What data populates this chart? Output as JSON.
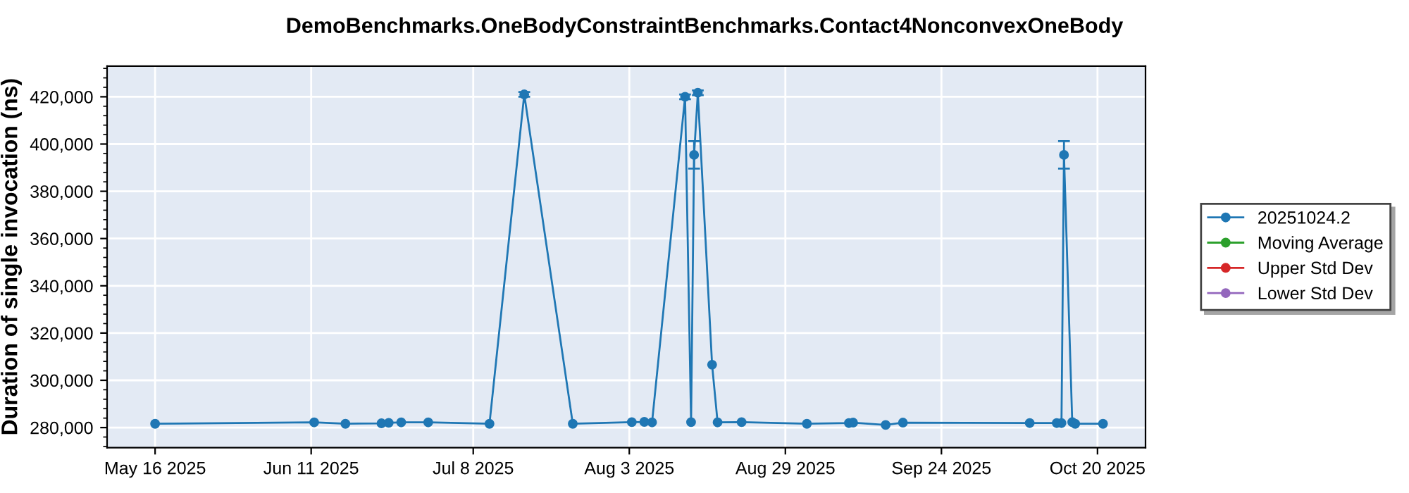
{
  "chart_data": {
    "type": "line",
    "title": "DemoBenchmarks.OneBodyConstraintBenchmarks.Contact4NonconvexOneBody",
    "ylabel": "Duration of single invocation (ns)",
    "xlim": [
      "2025-05-08",
      "2025-10-28"
    ],
    "xticks": [
      {
        "value": "2025-05-16",
        "label": "May 16 2025"
      },
      {
        "value": "2025-06-11",
        "label": "Jun 11 2025"
      },
      {
        "value": "2025-07-08",
        "label": "Jul 8 2025"
      },
      {
        "value": "2025-08-03",
        "label": "Aug 3 2025"
      },
      {
        "value": "2025-08-29",
        "label": "Aug 29 2025"
      },
      {
        "value": "2025-09-24",
        "label": "Sep 24 2025"
      },
      {
        "value": "2025-10-20",
        "label": "Oct 20 2025"
      }
    ],
    "ylim": [
      271500,
      433000
    ],
    "yticks": [
      {
        "value": 280000,
        "label": "280,000"
      },
      {
        "value": 300000,
        "label": "300,000"
      },
      {
        "value": 320000,
        "label": "320,000"
      },
      {
        "value": 340000,
        "label": "340,000"
      },
      {
        "value": 360000,
        "label": "360,000"
      },
      {
        "value": 380000,
        "label": "380,000"
      },
      {
        "value": 400000,
        "label": "400,000"
      },
      {
        "value": 420000,
        "label": "420,000"
      }
    ],
    "grid": true,
    "legend": "right",
    "marker": "circle",
    "line_style": "solid",
    "series": [
      {
        "name": "20251024.2",
        "color": "#1f77b4",
        "x": [
          "2025-05-16",
          "2025-06-11T12:00",
          "2025-06-16T17:00",
          "2025-06-22T17:00",
          "2025-06-23T22:00",
          "2025-06-26",
          "2025-06-30T12:00",
          "2025-07-10T17:00",
          "2025-07-16T12:00",
          "2025-07-24T14:00",
          "2025-08-03T10:00",
          "2025-08-05T12:00",
          "2025-08-06T19:00",
          "2025-08-12T07:00",
          "2025-08-13T07:00",
          "2025-08-13T19:00",
          "2025-08-14T10:00",
          "2025-08-16T19:00",
          "2025-08-17T17:00",
          "2025-08-21T17:00",
          "2025-09-01T14:00",
          "2025-09-08T14:00",
          "2025-09-09T07:00",
          "2025-09-14T17:00",
          "2025-09-17T14:00",
          "2025-10-08T17:00",
          "2025-10-13T05:00",
          "2025-10-14T00:00",
          "2025-10-14T10:00",
          "2025-10-15T19:00",
          "2025-10-16T07:00",
          "2025-10-20T22:00"
        ],
        "values": [
          281600,
          282200,
          281600,
          281800,
          282000,
          282200,
          282200,
          281600,
          421000,
          281600,
          282300,
          282400,
          282200,
          420000,
          282300,
          395400,
          421700,
          306600,
          282200,
          282300,
          281600,
          281900,
          282100,
          281100,
          282100,
          281900,
          281900,
          281900,
          395400,
          282300,
          281600,
          281600
        ],
        "errors": [
          null,
          null,
          null,
          null,
          null,
          null,
          null,
          null,
          1000,
          null,
          null,
          null,
          null,
          1000,
          null,
          5800,
          1000,
          null,
          null,
          null,
          null,
          null,
          null,
          null,
          null,
          null,
          null,
          null,
          5800,
          null,
          null,
          null
        ]
      },
      {
        "name": "Moving Average",
        "color": "#2ca02c"
      },
      {
        "name": "Upper Std Dev",
        "color": "#d62728"
      },
      {
        "name": "Lower Std Dev",
        "color": "#9467bd"
      }
    ]
  }
}
